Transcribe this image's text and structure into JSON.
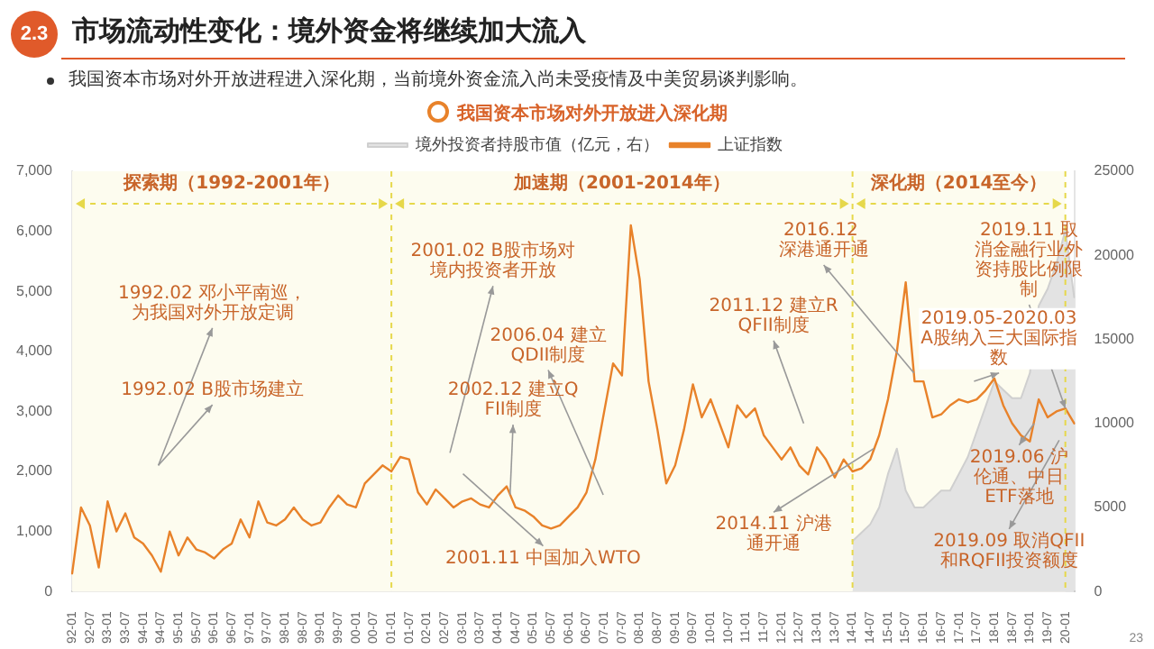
{
  "chart_data": {
    "type": "line",
    "title": "市场流动性变化：境外资金将继续加大流入",
    "subtitle": "我国资本市场对外开放进程进入深化期，当前境外资金流入尚未受疫情及中美贸易谈判影响。",
    "annotations": [
      "2.3",
      "我国资本市场对外开放进入深化期",
      "23",
      "1992.02 邓小平南巡，为我国对外开放定调",
      "1992.02 B股市场建立",
      "2001.02 B股市场对境内投资者开放",
      "2001.11 中国加入WTO",
      "2002.12 建立QFII制度",
      "2006.04 建立QDII制度",
      "2011.12 建立RQFII制度",
      "2014.11 沪港通开通",
      "2016.12 深港通开通",
      "2019.05-2020.03 A股纳入三大国际指数",
      "2019.06 沪伦通、中日ETF落地",
      "2019.09 取消QFII和RQFII投资额度",
      {
        "text": "2019.11 取消金融行业外资持股比例限制",
        "x": "20-01",
        "y": 3050
      }
    ],
    "bands": [
      {
        "axis": "x",
        "from": "92-01",
        "to": "01-01",
        "label": "探索期（1992-2001年）",
        "color": "#fdfcef"
      },
      {
        "axis": "x",
        "from": "01-01",
        "to": "14-01",
        "label": "加速期（2001-2014年）",
        "color": "#fdfcef"
      },
      {
        "axis": "x",
        "from": "14-01",
        "to": "20-01",
        "label": "深化期（2014至今）",
        "color": "#fdfcef"
      }
    ],
    "legend": "top",
    "marker": "none",
    "categories": [
      "92-01",
      null,
      "92-07",
      null,
      "93-01",
      null,
      "93-07",
      null,
      "94-01",
      null,
      "94-07",
      null,
      "95-01",
      null,
      "95-07",
      null,
      "96-01",
      null,
      "96-07",
      null,
      "97-01",
      null,
      "97-07",
      null,
      "98-01",
      null,
      "98-07",
      null,
      "99-01",
      null,
      "99-07",
      null,
      "00-01",
      null,
      "00-07",
      null,
      "01-01",
      null,
      "01-07",
      null,
      "02-01",
      null,
      "02-07",
      null,
      "03-01",
      null,
      "03-07",
      null,
      "04-01",
      null,
      "04-07",
      null,
      "05-01",
      null,
      "05-07",
      null,
      "06-01",
      null,
      "06-07",
      null,
      "07-01",
      null,
      "07-07",
      null,
      "08-01",
      null,
      "08-07",
      null,
      "09-01",
      null,
      "09-07",
      null,
      "10-01",
      null,
      "10-07",
      null,
      "11-01",
      null,
      "11-07",
      null,
      "12-01",
      null,
      "12-07",
      null,
      "13-01",
      null,
      "13-07",
      null,
      "14-01",
      null,
      "14-07",
      null,
      "15-01",
      null,
      "15-07",
      null,
      "16-01",
      null,
      "16-07",
      null,
      "17-01",
      null,
      "17-07",
      null,
      "18-01",
      null,
      "18-07",
      null,
      "19-01",
      null,
      "19-07",
      null,
      "20-01",
      null
    ],
    "ylim": [
      0,
      7000
    ],
    "yticks": [
      0,
      {
        "value": 1000,
        "label": "1,000"
      },
      {
        "value": 2000,
        "label": "2,000"
      },
      {
        "value": 3000,
        "label": "3,000"
      },
      {
        "value": 4000,
        "label": "4,000"
      },
      {
        "value": 5000,
        "label": "5,000"
      },
      {
        "value": 6000,
        "label": "6,000"
      },
      {
        "value": 7000,
        "label": "7,000"
      }
    ],
    "y2lim": [
      0,
      25000
    ],
    "y2ticks": [
      0,
      5000,
      10000,
      15000,
      20000,
      25000
    ],
    "series": [
      {
        "name": "境外投资者持股市值（亿元，右）",
        "type": "area",
        "axis": "y2",
        "color": "#e3e3e3",
        "values": [
          null,
          null,
          null,
          null,
          null,
          null,
          null,
          null,
          null,
          null,
          null,
          null,
          null,
          null,
          null,
          null,
          null,
          null,
          null,
          null,
          null,
          null,
          null,
          null,
          null,
          null,
          null,
          null,
          null,
          null,
          null,
          null,
          null,
          null,
          null,
          null,
          null,
          null,
          null,
          null,
          null,
          null,
          null,
          null,
          null,
          null,
          null,
          null,
          null,
          null,
          null,
          null,
          null,
          null,
          null,
          null,
          null,
          null,
          null,
          null,
          null,
          null,
          null,
          null,
          null,
          null,
          null,
          null,
          null,
          null,
          null,
          null,
          null,
          null,
          null,
          null,
          null,
          null,
          null,
          null,
          null,
          null,
          null,
          null,
          null,
          null,
          null,
          null,
          3000,
          3500,
          4000,
          5000,
          7000,
          8500,
          6000,
          5000,
          5000,
          5500,
          6000,
          6000,
          7000,
          8000,
          9500,
          11000,
          12500,
          12000,
          11500,
          11500,
          13000,
          17000,
          18000,
          19500,
          21500,
          17500
        ]
      },
      {
        "name": "上证指数",
        "axis": "y",
        "color": "#e8822a",
        "values": [
          300,
          1400,
          1100,
          400,
          1500,
          1000,
          1300,
          900,
          800,
          600,
          330,
          1000,
          600,
          900,
          700,
          650,
          550,
          700,
          800,
          1200,
          900,
          1500,
          1150,
          1100,
          1200,
          1400,
          1200,
          1100,
          1150,
          1400,
          1600,
          1450,
          1400,
          1800,
          1950,
          2100,
          2000,
          2240,
          2200,
          1650,
          1450,
          1700,
          1550,
          1400,
          1500,
          1550,
          1450,
          1400,
          1600,
          1750,
          1400,
          1350,
          1250,
          1100,
          1050,
          1100,
          1250,
          1400,
          1650,
          2200,
          3000,
          3800,
          3600,
          6100,
          5200,
          3500,
          2700,
          1800,
          2100,
          2700,
          3450,
          2900,
          3200,
          2800,
          2400,
          3100,
          2900,
          3050,
          2600,
          2400,
          2200,
          2400,
          2100,
          1950,
          2400,
          2200,
          1900,
          2200,
          2000,
          2050,
          2200,
          2600,
          3200,
          4000,
          5150,
          3500,
          3500,
          2900,
          2950,
          3100,
          3200,
          3150,
          3200,
          3350,
          3550,
          3100,
          2800,
          2600,
          2500,
          3200,
          2900,
          3000,
          3050,
          2800
        ]
      }
    ]
  }
}
